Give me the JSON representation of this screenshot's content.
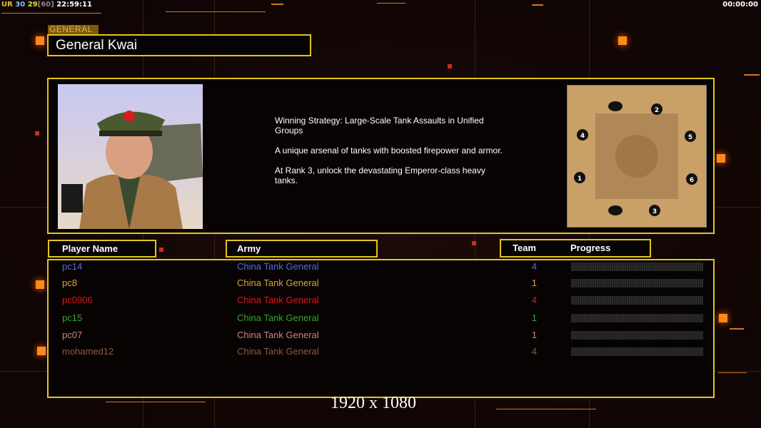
{
  "hud": {
    "ur": "UR",
    "fps1": "30",
    "fps2": "29",
    "fps_cap": "[60]",
    "time": "22:59:11",
    "timer": "00:00:00"
  },
  "general": {
    "label": "GENERAL",
    "name": "General Kwai",
    "description": [
      "Winning Strategy: Large-Scale Tank Assaults in Unified Groups",
      "A unique arsenal of tanks with boosted firepower and armor.",
      "At Rank 3, unlock the devastating Emperor-class heavy tanks."
    ]
  },
  "map": {
    "start_positions": [
      "1",
      "2",
      "3",
      "4",
      "5",
      "6"
    ]
  },
  "table": {
    "headers": {
      "player": "Player Name",
      "army": "Army",
      "team": "Team",
      "progress": "Progress"
    },
    "rows": [
      {
        "name": "pc14",
        "army": "China Tank General",
        "team": "4",
        "progress": 0,
        "color": "#4a6ee0"
      },
      {
        "name": "pc8",
        "army": "China Tank General",
        "team": "1",
        "progress": 0,
        "color": "#e0a040"
      },
      {
        "name": "pc0906",
        "army": "China Tank General",
        "team": "4",
        "progress": 0,
        "color": "#e01818"
      },
      {
        "name": "pc15",
        "army": "China Tank General",
        "team": "1",
        "progress": 0,
        "color": "#30a830"
      },
      {
        "name": "pc07",
        "army": "China Tank General",
        "team": "1",
        "progress": 0,
        "color": "#d08080"
      },
      {
        "name": "mohamed12",
        "army": "China Tank General",
        "team": "4",
        "progress": 0,
        "color": "#8a5a40"
      }
    ]
  },
  "resolution": "1920 x 1080"
}
